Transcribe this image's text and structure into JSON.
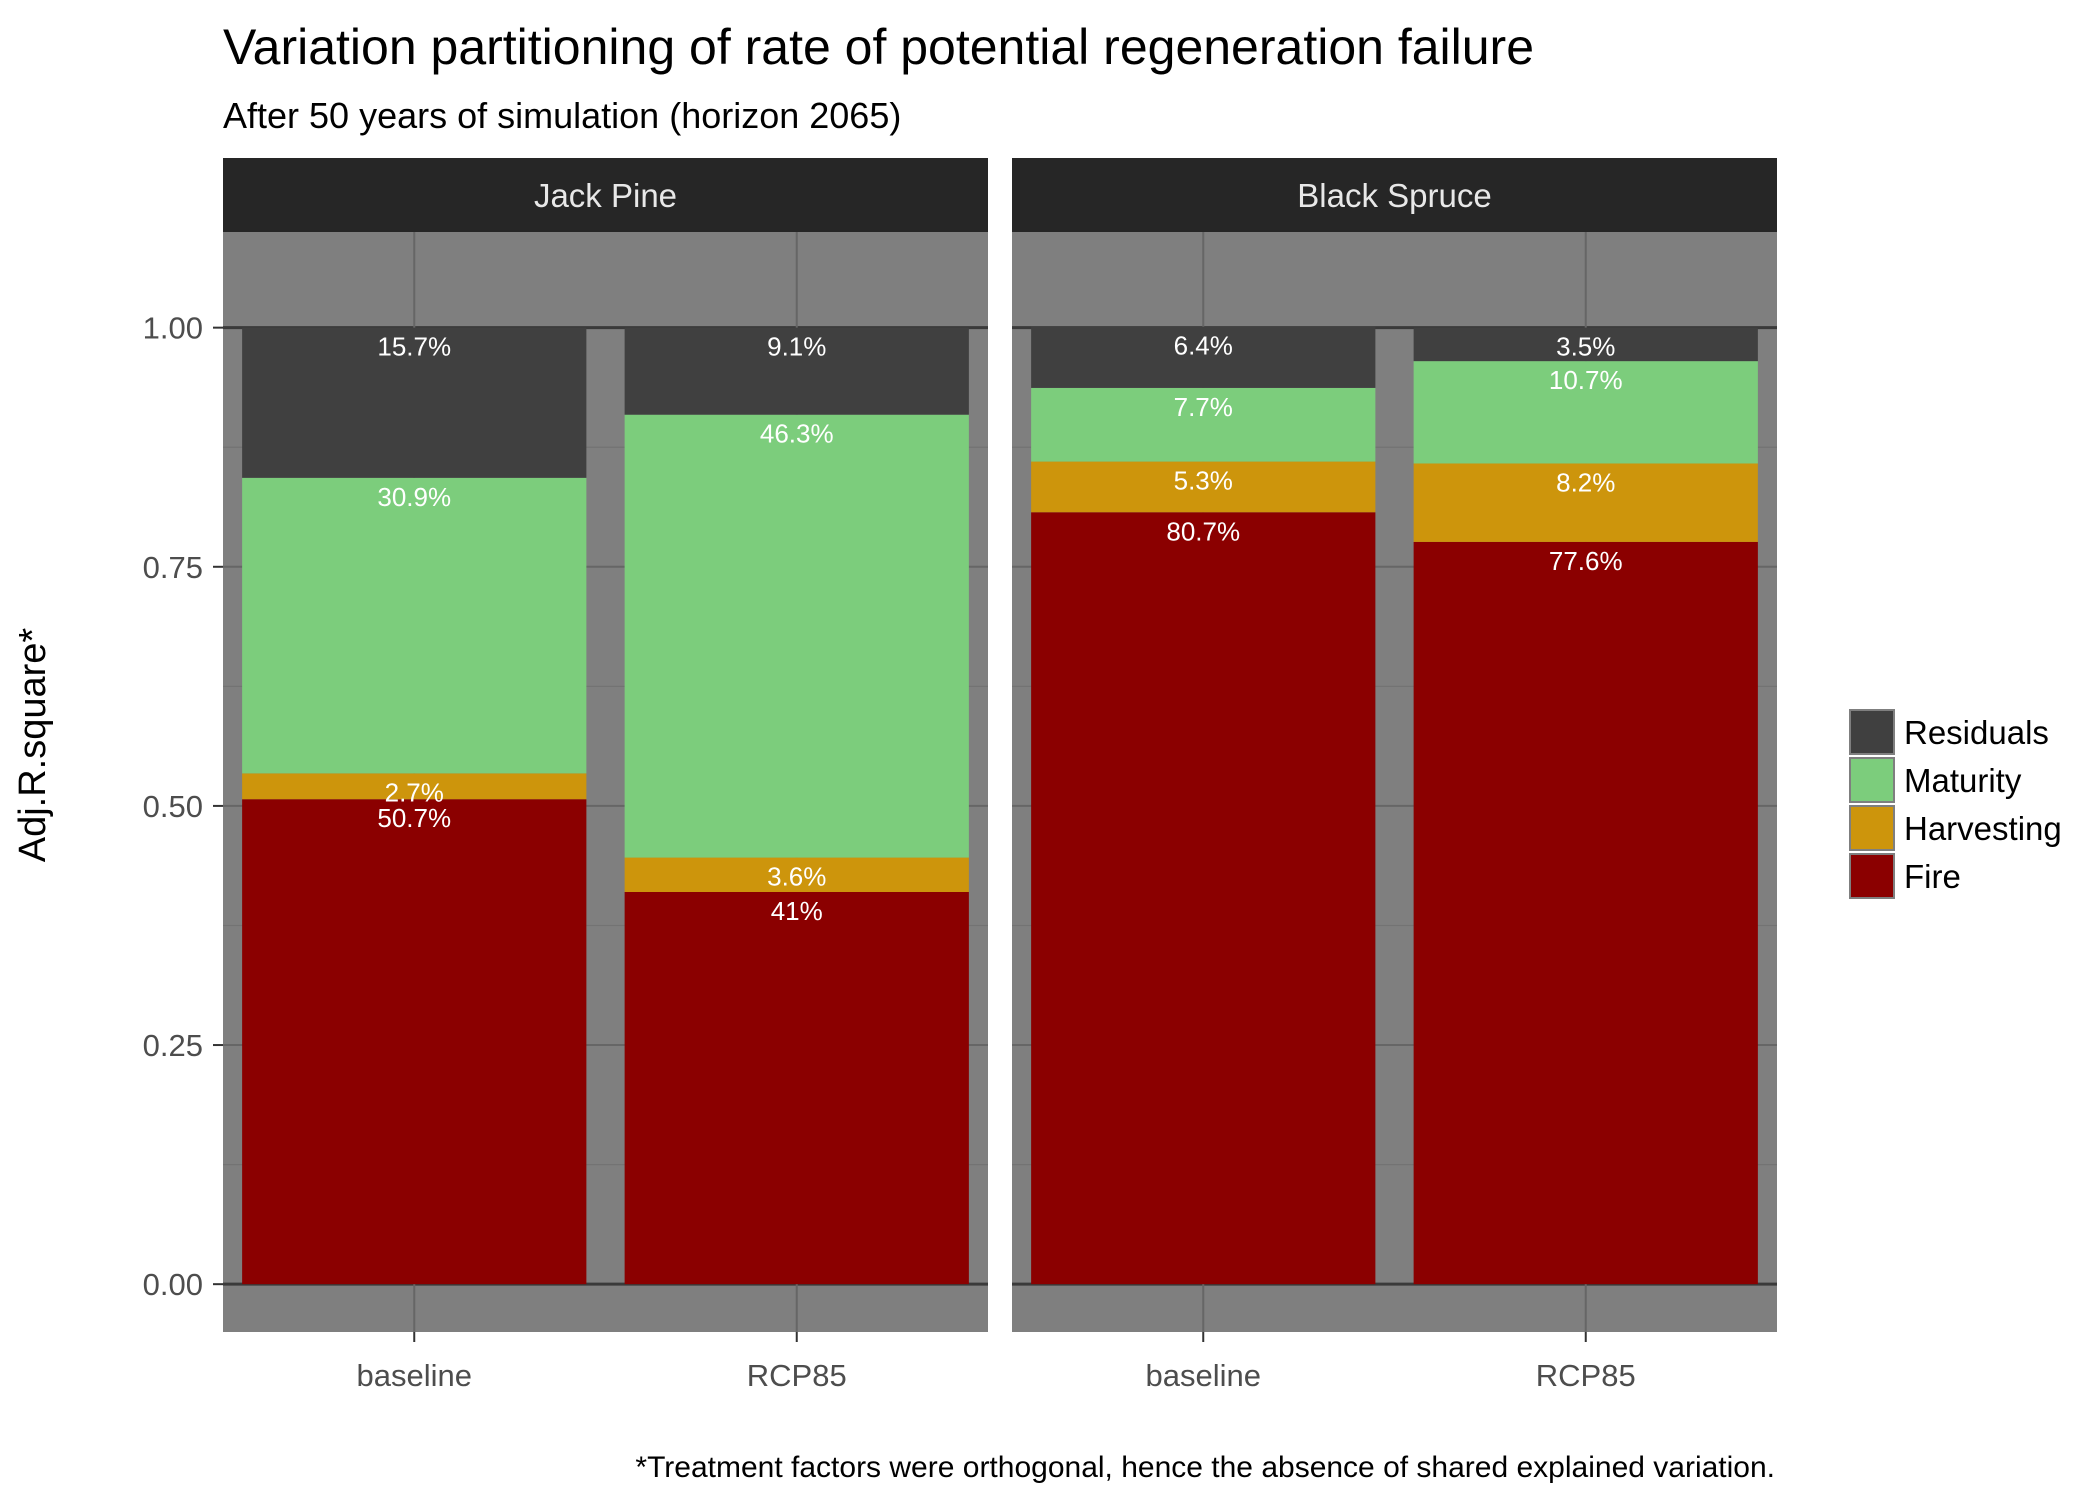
{
  "chart_data": {
    "type": "bar",
    "stacked": true,
    "title": "Variation partitioning of rate of potential regeneration failure",
    "subtitle": "After 50 years of simulation (horizon 2065)",
    "ylabel": "Adj.R.square*",
    "caption": "*Treatment factors were orthogonal, hence the absence of shared explained variation.",
    "ylim": [
      -0.05,
      1.1
    ],
    "yticks": [
      "0.00",
      "0.25",
      "0.50",
      "0.75",
      "1.00"
    ],
    "legend_position": "right",
    "legend": [
      "Residuals",
      "Maturity",
      "Harvesting",
      "Fire"
    ],
    "colors": {
      "Fire": "#8b0000",
      "Harvesting": "#cd950c",
      "Maturity": "#7ccd7c",
      "Residuals": "#404040",
      "panel": "#7f7f7f",
      "strip": "#262626"
    },
    "panels": [
      {
        "name": "Jack Pine",
        "categories": [
          "baseline",
          "RCP85"
        ],
        "series": [
          {
            "name": "Fire",
            "values": [
              0.507,
              0.41
            ],
            "labels": [
              "50.7%",
              "41%"
            ]
          },
          {
            "name": "Harvesting",
            "values": [
              0.027,
              0.036
            ],
            "labels": [
              "2.7%",
              "3.6%"
            ]
          },
          {
            "name": "Maturity",
            "values": [
              0.309,
              0.463
            ],
            "labels": [
              "30.9%",
              "46.3%"
            ]
          },
          {
            "name": "Residuals",
            "values": [
              0.157,
              0.091
            ],
            "labels": [
              "15.7%",
              "9.1%"
            ]
          }
        ]
      },
      {
        "name": "Black Spruce",
        "categories": [
          "baseline",
          "RCP85"
        ],
        "series": [
          {
            "name": "Fire",
            "values": [
              0.807,
              0.776
            ],
            "labels": [
              "80.7%",
              "77.6%"
            ]
          },
          {
            "name": "Harvesting",
            "values": [
              0.053,
              0.082
            ],
            "labels": [
              "5.3%",
              "8.2%"
            ]
          },
          {
            "name": "Maturity",
            "values": [
              0.077,
              0.107
            ],
            "labels": [
              "7.7%",
              "10.7%"
            ]
          },
          {
            "name": "Residuals",
            "values": [
              0.064,
              0.035
            ],
            "labels": [
              "6.4%",
              "3.5%"
            ]
          }
        ]
      }
    ]
  }
}
